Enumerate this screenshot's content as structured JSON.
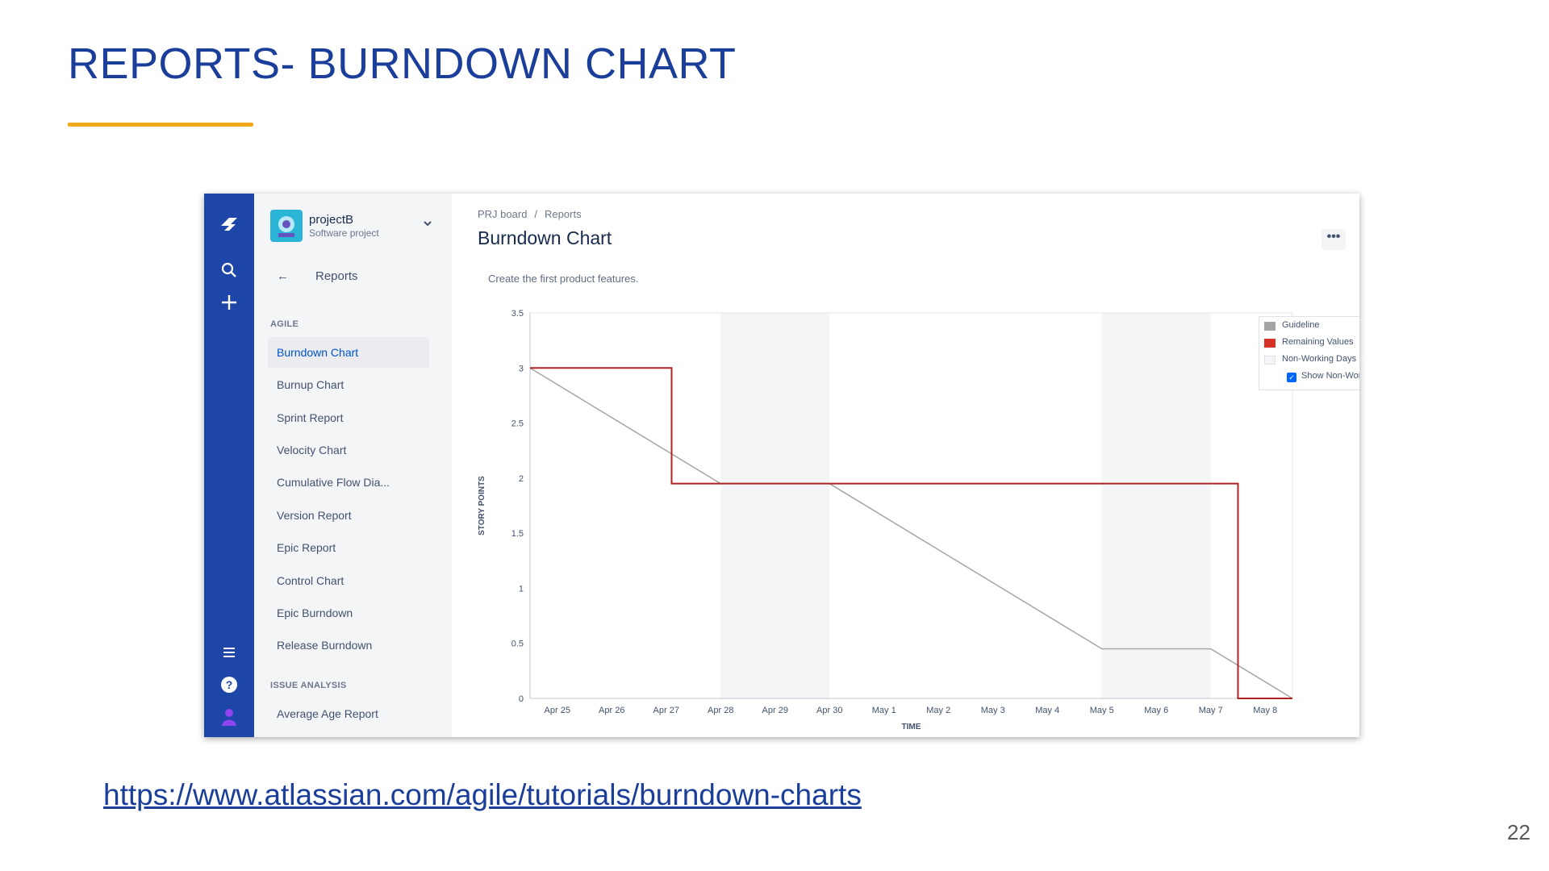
{
  "slide": {
    "title": "REPORTS- BURNDOWN CHART",
    "link_text": "https://www.atlassian.com/agile/tutorials/burndown-charts",
    "page_number": "22",
    "title_color": "#1a3e99",
    "accent_color": "#f2a81d"
  },
  "app": {
    "global_nav": {
      "color": "#1d46a8",
      "icons": [
        "jira-logo-icon",
        "search-icon",
        "plus-icon",
        "menu-icon",
        "help-icon",
        "avatar-icon"
      ]
    },
    "project": {
      "name": "projectB",
      "type": "Software project",
      "avatar_color": "#2ab4d6"
    },
    "sidebar": {
      "back_label": "Reports",
      "sections": [
        {
          "label": "AGILE",
          "items": [
            {
              "label": "Burndown Chart",
              "active": true
            },
            {
              "label": "Burnup Chart"
            },
            {
              "label": "Sprint Report"
            },
            {
              "label": "Velocity Chart"
            },
            {
              "label": "Cumulative Flow Dia..."
            },
            {
              "label": "Version Report"
            },
            {
              "label": "Epic Report"
            },
            {
              "label": "Control Chart"
            },
            {
              "label": "Epic Burndown"
            },
            {
              "label": "Release Burndown"
            }
          ]
        },
        {
          "label": "ISSUE ANALYSIS",
          "items": [
            {
              "label": "Average Age Report"
            }
          ]
        }
      ]
    },
    "main": {
      "breadcrumb": [
        "PRJ board",
        "Reports"
      ],
      "title": "Burndown Chart",
      "more_label": "•••",
      "description": "Create the first product features."
    }
  },
  "chart_data": {
    "type": "line",
    "xlabel": "TIME",
    "ylabel": "STORY POINTS",
    "ylim": [
      0,
      3.5
    ],
    "y_ticks": [
      "0",
      "0.5",
      "1",
      "1.5",
      "2",
      "2.5",
      "3",
      "3.5"
    ],
    "x_ticks": [
      "Apr 25",
      "Apr 26",
      "Apr 27",
      "Apr 28",
      "Apr 29",
      "Apr 30",
      "May 1",
      "May 2",
      "May 3",
      "May 4",
      "May 5",
      "May 6",
      "May 7",
      "May 8"
    ],
    "non_working_periods": [
      [
        3.5,
        5.5
      ],
      [
        10.5,
        12.5
      ]
    ],
    "series": [
      {
        "name": "Guideline",
        "color": "#a5a5a5",
        "points": [
          [
            0,
            3
          ],
          [
            3.5,
            1.95
          ],
          [
            5.5,
            1.95
          ],
          [
            10.5,
            0.45
          ],
          [
            12.5,
            0.45
          ],
          [
            14,
            0
          ]
        ]
      },
      {
        "name": "Remaining Values",
        "color": "#b22222",
        "points": [
          [
            0,
            3
          ],
          [
            2.6,
            3
          ],
          [
            2.6,
            1.95
          ],
          [
            13,
            1.95
          ],
          [
            13,
            0
          ],
          [
            14,
            0
          ]
        ]
      }
    ],
    "legend": {
      "position": "top-right",
      "items": [
        {
          "label": "Guideline",
          "color": "#a5a5a5"
        },
        {
          "label": "Remaining Values",
          "color": "#d93025"
        },
        {
          "label": "Non-Working Days",
          "color": "#f4f5f7"
        }
      ],
      "checkbox_label": "Show Non-Working Days",
      "checkbox_checked": true
    }
  }
}
